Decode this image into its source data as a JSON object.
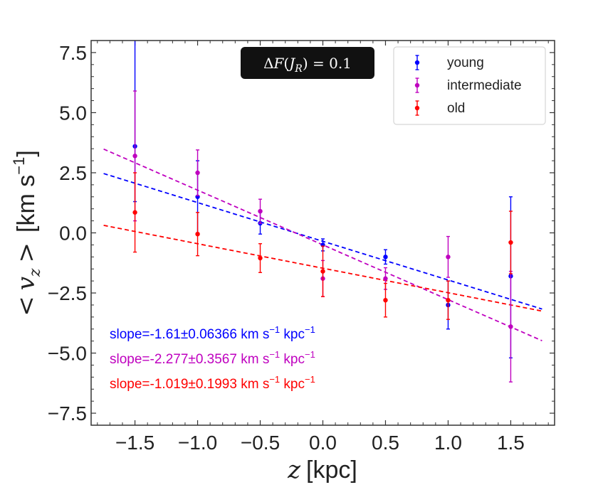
{
  "chart_data": {
    "type": "scatter",
    "title": "",
    "xlabel": "z [kpc]",
    "xlabel_var": "z",
    "xlabel_unit": "[kpc]",
    "ylabel": "< v_z > [km s^-1]",
    "ylabel_bracket_open": "<",
    "ylabel_var": "v",
    "ylabel_sub": "z",
    "ylabel_bracket_close": ">",
    "ylabel_unit": "[km s",
    "ylabel_unit_sup": "−1",
    "ylabel_unit_close": "]",
    "xlim": [
      -1.85,
      1.85
    ],
    "ylim": [
      -8.0,
      8.0
    ],
    "x_ticks": [
      -1.5,
      -1.0,
      -0.5,
      0.0,
      0.5,
      1.0,
      1.5
    ],
    "x_tick_labels": [
      "−1.5",
      "−1.0",
      "−0.5",
      "0.0",
      "0.5",
      "1.0",
      "1.5"
    ],
    "y_ticks": [
      7.5,
      5.0,
      2.5,
      0.0,
      -2.5,
      -5.0,
      -7.5
    ],
    "y_tick_labels": [
      "7.5",
      "5.0",
      "2.5",
      "0.0",
      "−2.5",
      "−5.0",
      "−7.5"
    ],
    "annotation": "ΔF(J_R) = 0.1",
    "annotation_parts": {
      "delta": "Δ",
      "f": "F",
      "open": "(",
      "j": "J",
      "sub": "R",
      "close": ")",
      "eq": " = 0.1"
    },
    "legend_position": "top-right",
    "series": [
      {
        "name": "young",
        "color": "#0000ff",
        "x": [
          -1.5,
          -1.0,
          -0.5,
          0.0,
          0.5,
          1.0,
          1.5
        ],
        "y": [
          3.6,
          1.5,
          0.4,
          -0.5,
          -1.0,
          -3.0,
          -1.8
        ],
        "yerr_low": [
          2.3,
          1.5,
          0.45,
          0.25,
          0.3,
          1.0,
          3.4
        ],
        "yerr_high": [
          4.8,
          1.5,
          0.45,
          0.25,
          0.3,
          1.0,
          3.3
        ],
        "fit": {
          "slope": -1.61,
          "intercept": -0.35,
          "x_range": [
            -1.75,
            1.75
          ]
        },
        "slope_label": "slope=-1.61±0.06366 km s",
        "slope_label_sup": "−1",
        "slope_label_unit": " kpc",
        "slope_label_unit_sup": "−1"
      },
      {
        "name": "intermediate",
        "color": "#bf00bf",
        "x": [
          -1.5,
          -1.0,
          -0.5,
          0.0,
          0.5,
          1.0,
          1.5
        ],
        "y": [
          3.2,
          2.5,
          0.9,
          -1.9,
          -1.9,
          -1.0,
          -3.9
        ],
        "yerr_low": [
          2.7,
          0.95,
          0.5,
          0.75,
          0.45,
          0.85,
          2.3
        ],
        "yerr_high": [
          2.7,
          0.95,
          0.5,
          0.75,
          0.45,
          0.85,
          2.3
        ],
        "fit": {
          "slope": -2.277,
          "intercept": -0.5,
          "x_range": [
            -1.75,
            1.75
          ]
        },
        "slope_label": "slope=-2.277±0.3567 km s",
        "slope_label_sup": "−1",
        "slope_label_unit": " kpc",
        "slope_label_unit_sup": "−1"
      },
      {
        "name": "old",
        "color": "#ff0000",
        "x": [
          -1.5,
          -1.0,
          -0.5,
          0.0,
          0.5,
          1.0,
          1.5
        ],
        "y": [
          0.85,
          -0.05,
          -1.05,
          -1.6,
          -2.8,
          -2.8,
          -0.4
        ],
        "yerr_low": [
          1.65,
          0.9,
          0.6,
          1.05,
          0.7,
          0.8,
          1.3
        ],
        "yerr_high": [
          1.65,
          0.9,
          0.6,
          1.05,
          0.7,
          0.8,
          1.3
        ],
        "fit": {
          "slope": -1.019,
          "intercept": -1.47,
          "x_range": [
            -1.75,
            1.75
          ]
        },
        "slope_label": "slope=-1.019±0.1993 km s",
        "slope_label_sup": "−1",
        "slope_label_unit": " kpc",
        "slope_label_unit_sup": "−1"
      }
    ]
  }
}
